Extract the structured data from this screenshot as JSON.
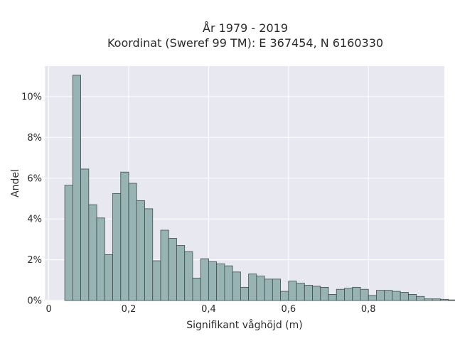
{
  "chart_data": {
    "type": "bar",
    "title_line1": "År 1979 - 2019",
    "title_line2": "Koordinat (Sweref 99 TM): E 367454, N 6160330",
    "xlabel": "Signifikant våghöjd (m)",
    "ylabel": "Andel",
    "xlim": [
      -0.01,
      0.99
    ],
    "ylim": [
      0,
      11.5
    ],
    "x_ticks": [
      0,
      0.2,
      0.4,
      0.6,
      0.8
    ],
    "x_tick_labels": [
      "0",
      "0,2",
      "0,4",
      "0,6",
      "0,8"
    ],
    "y_ticks": [
      0,
      2,
      4,
      6,
      8,
      10
    ],
    "y_tick_labels": [
      "0%",
      "2%",
      "4%",
      "6%",
      "8%",
      "10%"
    ],
    "bin_start": 0.04,
    "bin_width": 0.02,
    "values": [
      5.65,
      11.05,
      6.45,
      4.7,
      4.05,
      2.25,
      5.25,
      6.3,
      5.75,
      4.9,
      4.5,
      1.95,
      3.45,
      3.05,
      2.7,
      2.4,
      1.1,
      2.05,
      1.9,
      1.8,
      1.7,
      1.4,
      0.65,
      1.3,
      1.2,
      1.05,
      1.05,
      0.45,
      0.95,
      0.85,
      0.75,
      0.7,
      0.65,
      0.3,
      0.55,
      0.6,
      0.65,
      0.55,
      0.25,
      0.5,
      0.5,
      0.45,
      0.4,
      0.3,
      0.2,
      0.08,
      0.08,
      0.06,
      0.03,
      0.03
    ],
    "grid": true,
    "colors": {
      "bar": "#97b3b3",
      "bar_edge": "#3f4c4c",
      "plot_bg": "#e8e8f0",
      "grid": "#ffffff"
    }
  }
}
